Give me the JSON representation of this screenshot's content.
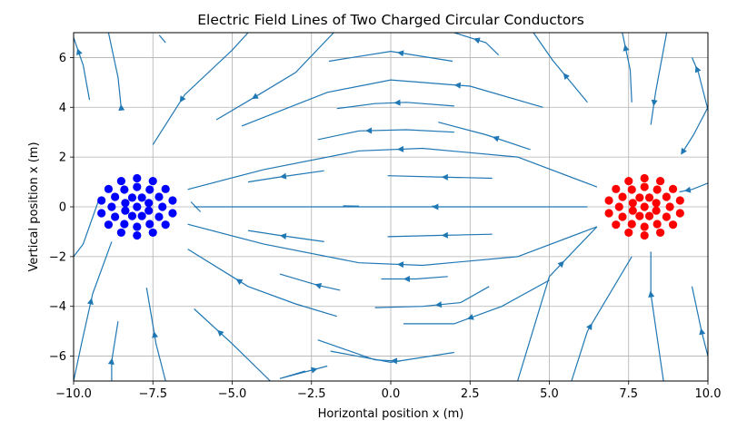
{
  "chart_data": {
    "type": "streamplot",
    "title": "Electric Field Lines of Two Charged Circular Conductors",
    "xlabel": "Horizontal position x (m)",
    "ylabel": "Vertical position x (m)",
    "xlim": [
      -10,
      10
    ],
    "ylim": [
      -7,
      7
    ],
    "xticks": [
      -10,
      -7.5,
      -5,
      -2.5,
      0,
      2.5,
      5,
      7.5,
      10
    ],
    "xtick_labels": [
      "−10.0",
      "−7.5",
      "−5.0",
      "−2.5",
      "0.0",
      "2.5",
      "5.0",
      "7.5",
      "10.0"
    ],
    "yticks": [
      -6,
      -4,
      -2,
      0,
      2,
      4,
      6
    ],
    "ytick_labels": [
      "−6",
      "−4",
      "−2",
      "0",
      "2",
      "4",
      "6"
    ],
    "grid": true,
    "stream_color": "#1f77b4",
    "conductors": [
      {
        "name": "negative",
        "center": [
          -8,
          0
        ],
        "color": "#0000ff",
        "ring_radii": [
          0,
          0.4,
          0.8,
          1.15
        ]
      },
      {
        "name": "positive",
        "center": [
          8,
          0
        ],
        "color": "#ff0000",
        "ring_radii": [
          0,
          0.4,
          0.8,
          1.15
        ]
      }
    ],
    "field_lines": [
      {
        "points": [
          [
            -6.2,
            0
          ],
          [
            -3,
            0
          ],
          [
            0,
            0
          ],
          [
            3,
            0
          ],
          [
            6.2,
            0
          ]
        ],
        "arrows": [
          1.4
        ]
      },
      {
        "points": [
          [
            -6.4,
            0.7
          ],
          [
            -4,
            1.5
          ],
          [
            -1,
            2.25
          ],
          [
            1,
            2.35
          ],
          [
            4,
            2.0
          ],
          [
            6.5,
            0.8
          ]
        ],
        "arrows": [
          0.3
        ]
      },
      {
        "points": [
          [
            -6.4,
            -0.7
          ],
          [
            -4,
            -1.5
          ],
          [
            -1,
            -2.25
          ],
          [
            1,
            -2.35
          ],
          [
            4,
            -2.0
          ],
          [
            6.5,
            -0.8
          ]
        ],
        "arrows": [
          0.3
        ]
      },
      {
        "points": [
          [
            -4.5,
            1.0
          ],
          [
            -3.5,
            1.2
          ],
          [
            -2.1,
            1.45
          ]
        ],
        "arrows": [
          -3.4
        ]
      },
      {
        "points": [
          [
            -4.5,
            -0.95
          ],
          [
            -3.5,
            -1.15
          ],
          [
            -2.1,
            -1.4
          ]
        ],
        "arrows": [
          -3.4
        ]
      },
      {
        "points": [
          [
            -1.5,
            0.04
          ],
          [
            -1.0,
            0.03
          ]
        ],
        "arrows": []
      },
      {
        "points": [
          [
            1.5,
            0.03
          ],
          [
            1.3,
            0.03
          ]
        ],
        "arrows": []
      },
      {
        "points": [
          [
            -0.1,
            1.25
          ],
          [
            1.5,
            1.2
          ],
          [
            3.2,
            1.15
          ]
        ],
        "arrows": [
          1.7
        ]
      },
      {
        "points": [
          [
            -0.1,
            -1.2
          ],
          [
            1.5,
            -1.15
          ],
          [
            3.2,
            -1.1
          ]
        ],
        "arrows": [
          1.7
        ]
      },
      {
        "points": [
          [
            -2.3,
            2.7
          ],
          [
            -1,
            3.05
          ],
          [
            0.5,
            3.1
          ],
          [
            2.0,
            3.0
          ]
        ],
        "arrows": [
          -0.7
        ]
      },
      {
        "points": [
          [
            1.5,
            3.4
          ],
          [
            3,
            2.9
          ],
          [
            4.4,
            2.3
          ]
        ],
        "arrows": [
          3.3
        ]
      },
      {
        "points": [
          [
            -1.7,
            3.95
          ],
          [
            -0.5,
            4.15
          ],
          [
            0.5,
            4.2
          ],
          [
            2.0,
            4.05
          ]
        ],
        "arrows": [
          0.2
        ]
      },
      {
        "points": [
          [
            -4.7,
            3.25
          ],
          [
            -2,
            4.6
          ],
          [
            0,
            5.1
          ],
          [
            2.5,
            4.85
          ],
          [
            4.8,
            4.0
          ]
        ],
        "arrows": [
          2.1
        ]
      },
      {
        "points": [
          [
            -1.95,
            5.85
          ],
          [
            0,
            6.25
          ],
          [
            1.95,
            5.85
          ]
        ],
        "arrows": [
          0.3
        ]
      },
      {
        "points": [
          [
            -7.5,
            2.5
          ],
          [
            -6.5,
            4.5
          ],
          [
            -5,
            6.3
          ],
          [
            -4.5,
            7
          ]
        ],
        "arrows": [
          -6.6
        ]
      },
      {
        "points": [
          [
            -5.5,
            3.5
          ],
          [
            -4.3,
            4.4
          ],
          [
            -3,
            5.4
          ],
          [
            -1.8,
            7
          ]
        ],
        "arrows": [
          -4.3
        ]
      },
      {
        "points": [
          [
            2.0,
            7
          ],
          [
            3,
            6.6
          ],
          [
            3.4,
            6.1
          ]
        ],
        "arrows": [
          2.7
        ]
      },
      {
        "points": [
          [
            4.5,
            7
          ],
          [
            5.1,
            5.9
          ],
          [
            6.2,
            4.2
          ]
        ],
        "arrows": [
          5.5
        ]
      },
      {
        "points": [
          [
            7.3,
            7
          ],
          [
            7.55,
            5.5
          ],
          [
            7.6,
            4.2
          ]
        ],
        "arrows": [
          7.4
        ]
      },
      {
        "points": [
          [
            8.2,
            3.3
          ],
          [
            8.35,
            4.6
          ],
          [
            8.7,
            7
          ]
        ],
        "arrows": [
          8.3
        ]
      },
      {
        "points": [
          [
            9.5,
            6.0
          ],
          [
            9.7,
            5.4
          ],
          [
            10,
            3.9
          ]
        ],
        "arrows": [
          9.65
        ]
      },
      {
        "points": [
          [
            9.2,
            2.2
          ],
          [
            9.55,
            2.9
          ],
          [
            10,
            4.0
          ]
        ],
        "arrows": [
          9.2
        ]
      },
      {
        "points": [
          [
            9.1,
            0.6
          ],
          [
            9.5,
            0.7
          ],
          [
            10,
            0.95
          ]
        ],
        "arrows": [
          9.35
        ]
      },
      {
        "points": [
          [
            -10,
            6.8
          ],
          [
            -9.7,
            5.7
          ],
          [
            -9.5,
            4.3
          ]
        ],
        "arrows": [
          -9.85
        ]
      },
      {
        "points": [
          [
            -8.9,
            7
          ],
          [
            -8.6,
            5.2
          ],
          [
            -8.5,
            4.0
          ]
        ],
        "arrows": [
          -8.5
        ]
      },
      {
        "points": [
          [
            -7.3,
            6.9
          ],
          [
            -7.1,
            6.6
          ]
        ],
        "arrows": []
      },
      {
        "points": [
          [
            -9.2,
            0.3
          ],
          [
            -9.7,
            -1.5
          ],
          [
            -10,
            -2.0
          ]
        ],
        "arrows": []
      },
      {
        "points": [
          [
            -8.8,
            -1.4
          ],
          [
            -9.4,
            -3.5
          ],
          [
            -9.75,
            -5.5
          ],
          [
            -10,
            -7
          ]
        ],
        "arrows": [
          -9.45
        ]
      },
      {
        "points": [
          [
            -8.6,
            -4.6
          ],
          [
            -8.8,
            -6.2
          ],
          [
            -8.8,
            -7
          ]
        ],
        "arrows": [
          -8.8
        ]
      },
      {
        "points": [
          [
            -7.7,
            -3.25
          ],
          [
            -7.4,
            -5.5
          ],
          [
            -7.1,
            -7
          ]
        ],
        "arrows": [
          -7.45
        ]
      },
      {
        "points": [
          [
            -6.3,
            0.2
          ],
          [
            -6.0,
            -0.2
          ]
        ],
        "arrows": []
      },
      {
        "points": [
          [
            -6.4,
            -1.7
          ],
          [
            -4.5,
            -3.2
          ],
          [
            -3.0,
            -3.9
          ],
          [
            -1.7,
            -4.4
          ]
        ],
        "arrows": [
          -4.8
        ]
      },
      {
        "points": [
          [
            -3.5,
            -2.7
          ],
          [
            -2.3,
            -3.15
          ],
          [
            -1.6,
            -3.35
          ]
        ],
        "arrows": [
          -2.3
        ]
      },
      {
        "points": [
          [
            -2.3,
            -5.35
          ],
          [
            -0.5,
            -6.15
          ],
          [
            0.3,
            -6.2
          ]
        ],
        "arrows": [
          0.1
        ]
      },
      {
        "points": [
          [
            -1.9,
            -5.8
          ],
          [
            0,
            -6.25
          ],
          [
            2,
            -5.85
          ]
        ],
        "arrows": []
      },
      {
        "points": [
          [
            -0.3,
            -2.9
          ],
          [
            0.8,
            -2.9
          ],
          [
            1.8,
            -2.8
          ]
        ],
        "arrows": [
          0.5
        ]
      },
      {
        "points": [
          [
            -0.5,
            -4.05
          ],
          [
            1,
            -4.0
          ],
          [
            2.2,
            -3.85
          ],
          [
            3.1,
            -3.2
          ]
        ],
        "arrows": [
          1.5
        ]
      },
      {
        "points": [
          [
            -2.0,
            -6.4
          ],
          [
            -3.5,
            -6.9
          ],
          [
            -2.7,
            -6.6
          ]
        ],
        "arrows": [
          -2.4
        ]
      },
      {
        "points": [
          [
            -6.2,
            -4.1
          ],
          [
            -5.0,
            -5.5
          ],
          [
            -3.8,
            -7
          ]
        ],
        "arrows": [
          -5.4
        ]
      },
      {
        "points": [
          [
            0.4,
            -4.7
          ],
          [
            2,
            -4.7
          ],
          [
            3.5,
            -4.0
          ],
          [
            5.0,
            -2.95
          ]
        ],
        "arrows": [
          2.5
        ]
      },
      {
        "points": [
          [
            6.5,
            -0.8
          ],
          [
            5,
            -2.8
          ],
          [
            4,
            -7
          ]
        ],
        "arrows": [
          5.4
        ]
      },
      {
        "points": [
          [
            7.6,
            -2.0
          ],
          [
            6.2,
            -5.0
          ],
          [
            5.7,
            -7
          ]
        ],
        "arrows": [
          6.3
        ]
      },
      {
        "points": [
          [
            8.2,
            -1.8
          ],
          [
            8.2,
            -3.5
          ],
          [
            8.6,
            -7
          ]
        ],
        "arrows": [
          8.2
        ]
      },
      {
        "points": [
          [
            9.5,
            -3.2
          ],
          [
            9.8,
            -5.0
          ],
          [
            10,
            -6.0
          ]
        ],
        "arrows": [
          9.8
        ]
      }
    ]
  }
}
